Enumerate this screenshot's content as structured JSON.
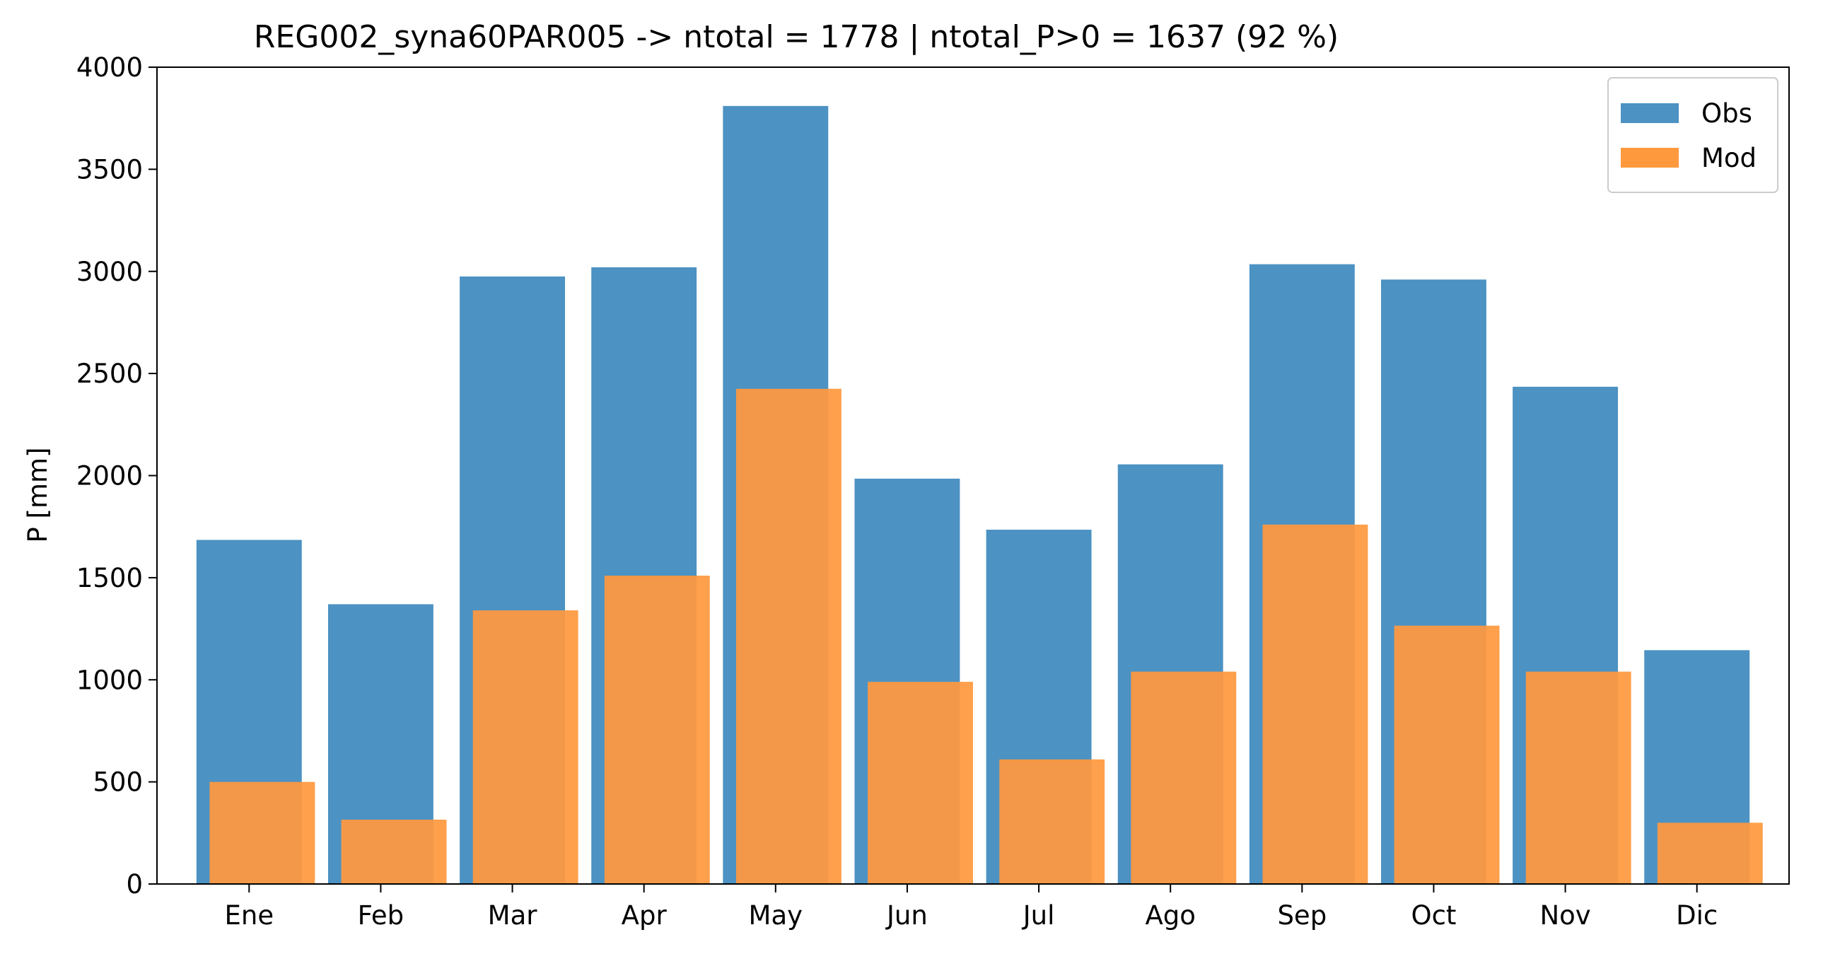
{
  "chart_data": {
    "type": "bar",
    "title": "REG002_syna60PAR005 -> ntotal = 1778 | ntotal_P>0 = 1637 (92 %)",
    "xlabel": "",
    "ylabel": "P [mm]",
    "ylim": [
      0,
      4000
    ],
    "yticks": [
      0,
      500,
      1000,
      1500,
      2000,
      2500,
      3000,
      3500,
      4000
    ],
    "grid": false,
    "legend_position": "top-right",
    "categories": [
      "Ene",
      "Feb",
      "Mar",
      "Apr",
      "May",
      "Jun",
      "Jul",
      "Ago",
      "Sep",
      "Oct",
      "Nov",
      "Dic"
    ],
    "series": [
      {
        "name": "Obs",
        "color": "#4C92C3",
        "values": [
          1685,
          1370,
          2975,
          3020,
          3810,
          1985,
          1735,
          2055,
          3035,
          2960,
          2435,
          1145
        ]
      },
      {
        "name": "Mod",
        "color": "#FF993E",
        "values": [
          500,
          315,
          1340,
          1510,
          2425,
          990,
          610,
          1040,
          1760,
          1265,
          1040,
          300
        ]
      }
    ]
  }
}
